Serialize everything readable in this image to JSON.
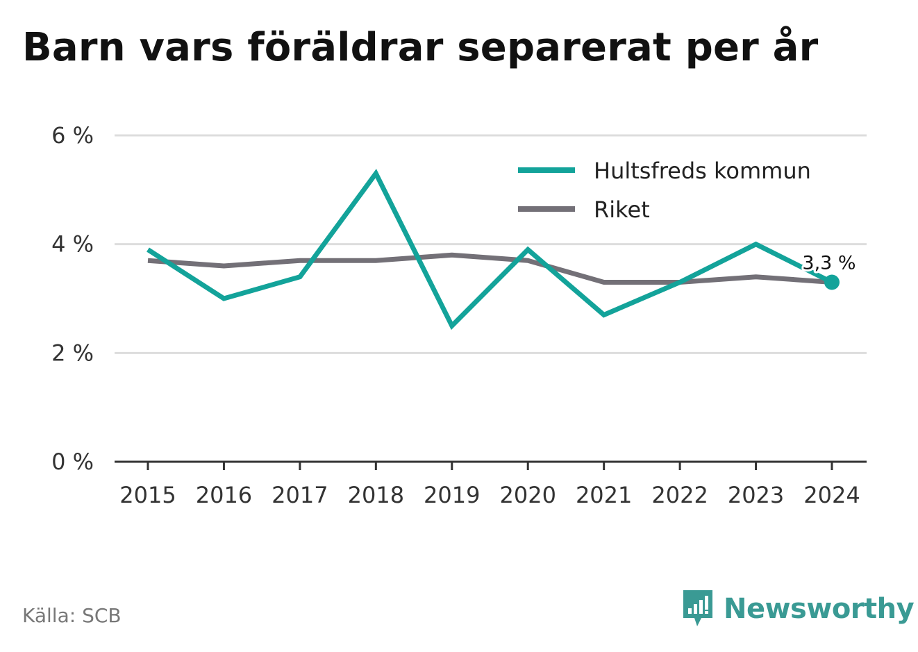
{
  "chart_data": {
    "type": "line",
    "title": "Barn vars föräldrar separerat per år",
    "x": [
      "2015",
      "2016",
      "2017",
      "2018",
      "2019",
      "2020",
      "2021",
      "2022",
      "2023",
      "2024"
    ],
    "y_ticks": [
      "0 %",
      "2 %",
      "4 %",
      "6 %"
    ],
    "ylim": [
      0,
      6
    ],
    "y_unit": "%",
    "grid": true,
    "legend_position": "top-right",
    "series": [
      {
        "name": "Hultsfreds kommun",
        "color": "#13a39a",
        "values": [
          3.9,
          3.0,
          3.4,
          5.3,
          2.5,
          3.9,
          2.7,
          3.3,
          4.0,
          3.3
        ]
      },
      {
        "name": "Riket",
        "color": "#737077",
        "values": [
          3.7,
          3.6,
          3.7,
          3.7,
          3.8,
          3.7,
          3.3,
          3.3,
          3.4,
          3.3
        ]
      }
    ],
    "annotation": {
      "series": 0,
      "index": 9,
      "text": "3,3 %"
    }
  },
  "footer": {
    "source": "Källa: SCB",
    "brand": "Newsworthy"
  },
  "colors": {
    "grid": "#dddddd",
    "axis": "#333333",
    "brand": "#3a9a94"
  }
}
